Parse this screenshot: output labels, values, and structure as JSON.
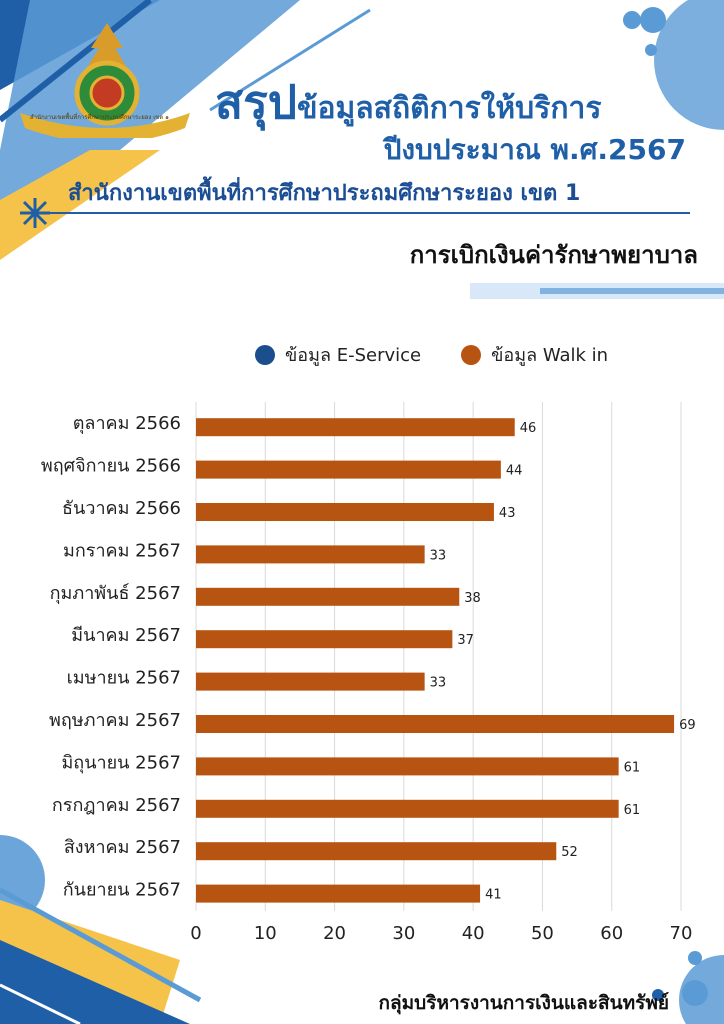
{
  "header": {
    "title_emph": "สรุป",
    "title_rest": "ข้อมูลสถิติการให้บริการ",
    "fiscal_year": "ปีงบประมาณ พ.ศ.2567",
    "office": "สำนักงานเขตพื้นที่การศึกษาประถมศึกษาระยอง เขต 1",
    "topic": "การเบิกเงินค่ารักษาพยาบาล",
    "logo_ribbon_text": "สำนักงานเขตพื้นที่การศึกษาประถมศึกษาระยอง เขต ๑"
  },
  "legend": {
    "eservice_label": "ข้อมูล E-Service",
    "walkin_label": "ข้อมูล Walk in"
  },
  "footer": {
    "text": "กลุ่มบริหารงานการเงินและสินทรัพย์"
  },
  "colors": {
    "eservice": "#1a4e8c",
    "walkin": "#b85412",
    "accent_blue": "#1f5fa8",
    "light_blue": "#5b9bd5",
    "yellow": "#f5c349"
  },
  "chart_data": {
    "type": "bar",
    "orientation": "horizontal",
    "categories": [
      "ตุลาคม 2566",
      "พฤศจิกายน 2566",
      "ธันวาคม 2566",
      "มกราคม 2567",
      "กุมภาพันธ์ 2567",
      "มีนาคม 2567",
      "เมษายน 2567",
      "พฤษภาคม 2567",
      "มิถุนายน 2567",
      "กรกฎาคม 2567",
      "สิงหาคม 2567",
      "กันยายน 2567"
    ],
    "series": [
      {
        "name": "ข้อมูล E-Service",
        "values": [
          0,
          0,
          0,
          0,
          0,
          0,
          0,
          0,
          0,
          0,
          0,
          0
        ]
      },
      {
        "name": "ข้อมูล Walk in",
        "values": [
          46,
          44,
          43,
          33,
          38,
          37,
          33,
          69,
          61,
          61,
          52,
          41
        ]
      }
    ],
    "xlim": [
      0,
      70
    ],
    "xticks": [
      0,
      10,
      20,
      30,
      40,
      50,
      60,
      70
    ],
    "grid": true,
    "legend_position": "top"
  }
}
